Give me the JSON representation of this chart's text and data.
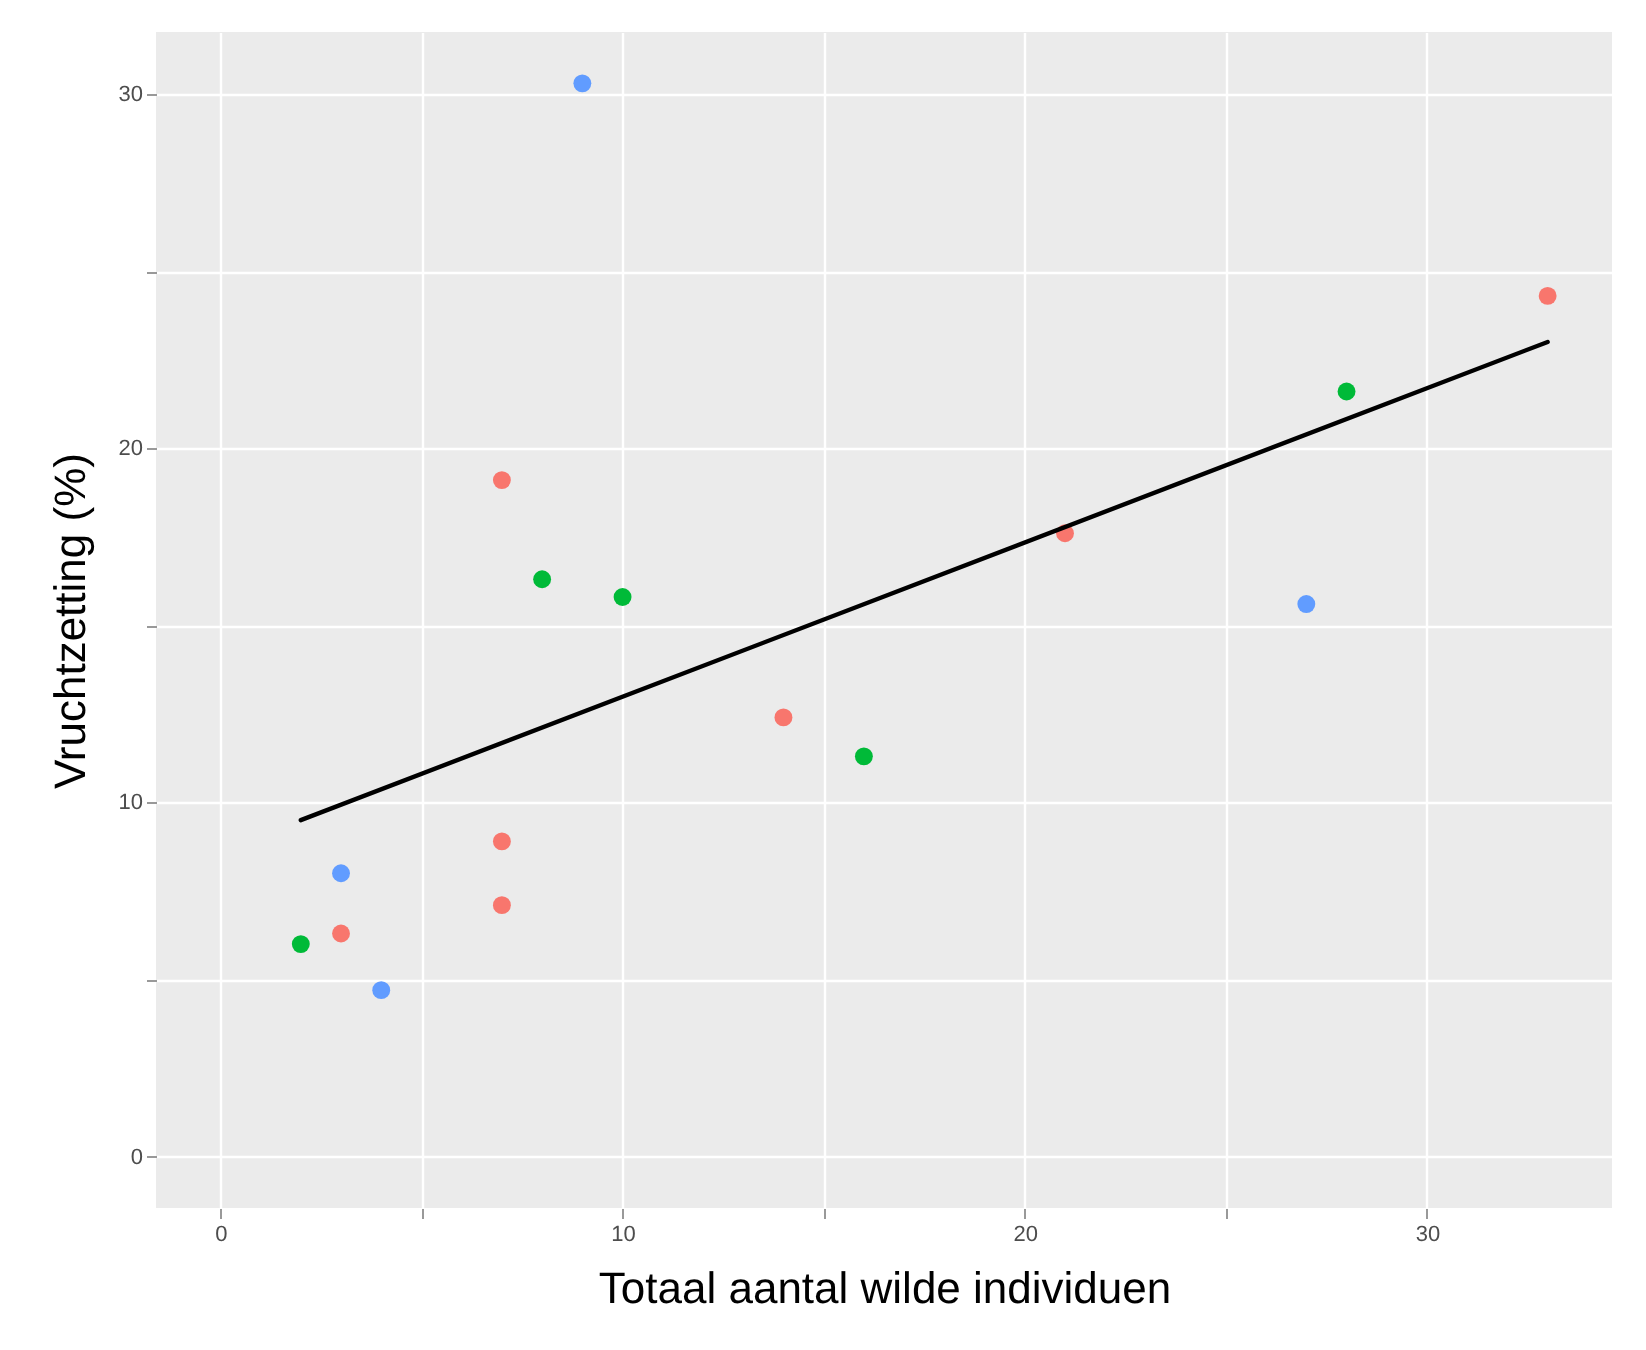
{
  "chart_data": {
    "type": "scatter",
    "xlabel": "Totaal aantal wilde individuen",
    "ylabel": "Vruchtzetting (%)",
    "xlim": [
      -1.6,
      34.6
    ],
    "ylim": [
      -1.45,
      31.75
    ],
    "xticks": [
      0,
      {
        "value": 5,
        "label": null
      },
      10,
      {
        "value": 15,
        "label": null
      },
      20,
      {
        "value": 25,
        "label": null
      },
      30
    ],
    "yticks": [
      0,
      {
        "value": 5,
        "label": null
      },
      10,
      {
        "value": 15,
        "label": null
      },
      20,
      {
        "value": 25,
        "label": null
      },
      30
    ],
    "grid": true,
    "marker": "circle",
    "series": [
      {
        "color": "#f8766d",
        "x": [
          33,
          7,
          21,
          14,
          7,
          7,
          3
        ],
        "values": [
          24.3,
          19.1,
          17.6,
          12.4,
          8.9,
          7.1,
          6.3
        ]
      },
      {
        "color": "#00ba38",
        "x": [
          28,
          8,
          10,
          16,
          2
        ],
        "values": [
          21.6,
          16.3,
          15.8,
          11.3,
          6.0
        ]
      },
      {
        "color": "#619cff",
        "x": [
          9,
          27,
          3,
          4
        ],
        "values": [
          30.3,
          15.6,
          8.0,
          4.7
        ]
      },
      {
        "type": "line",
        "marker": "none",
        "color": "#000000",
        "x": [
          2,
          33
        ],
        "values": [
          9.5,
          23.0
        ]
      }
    ]
  }
}
